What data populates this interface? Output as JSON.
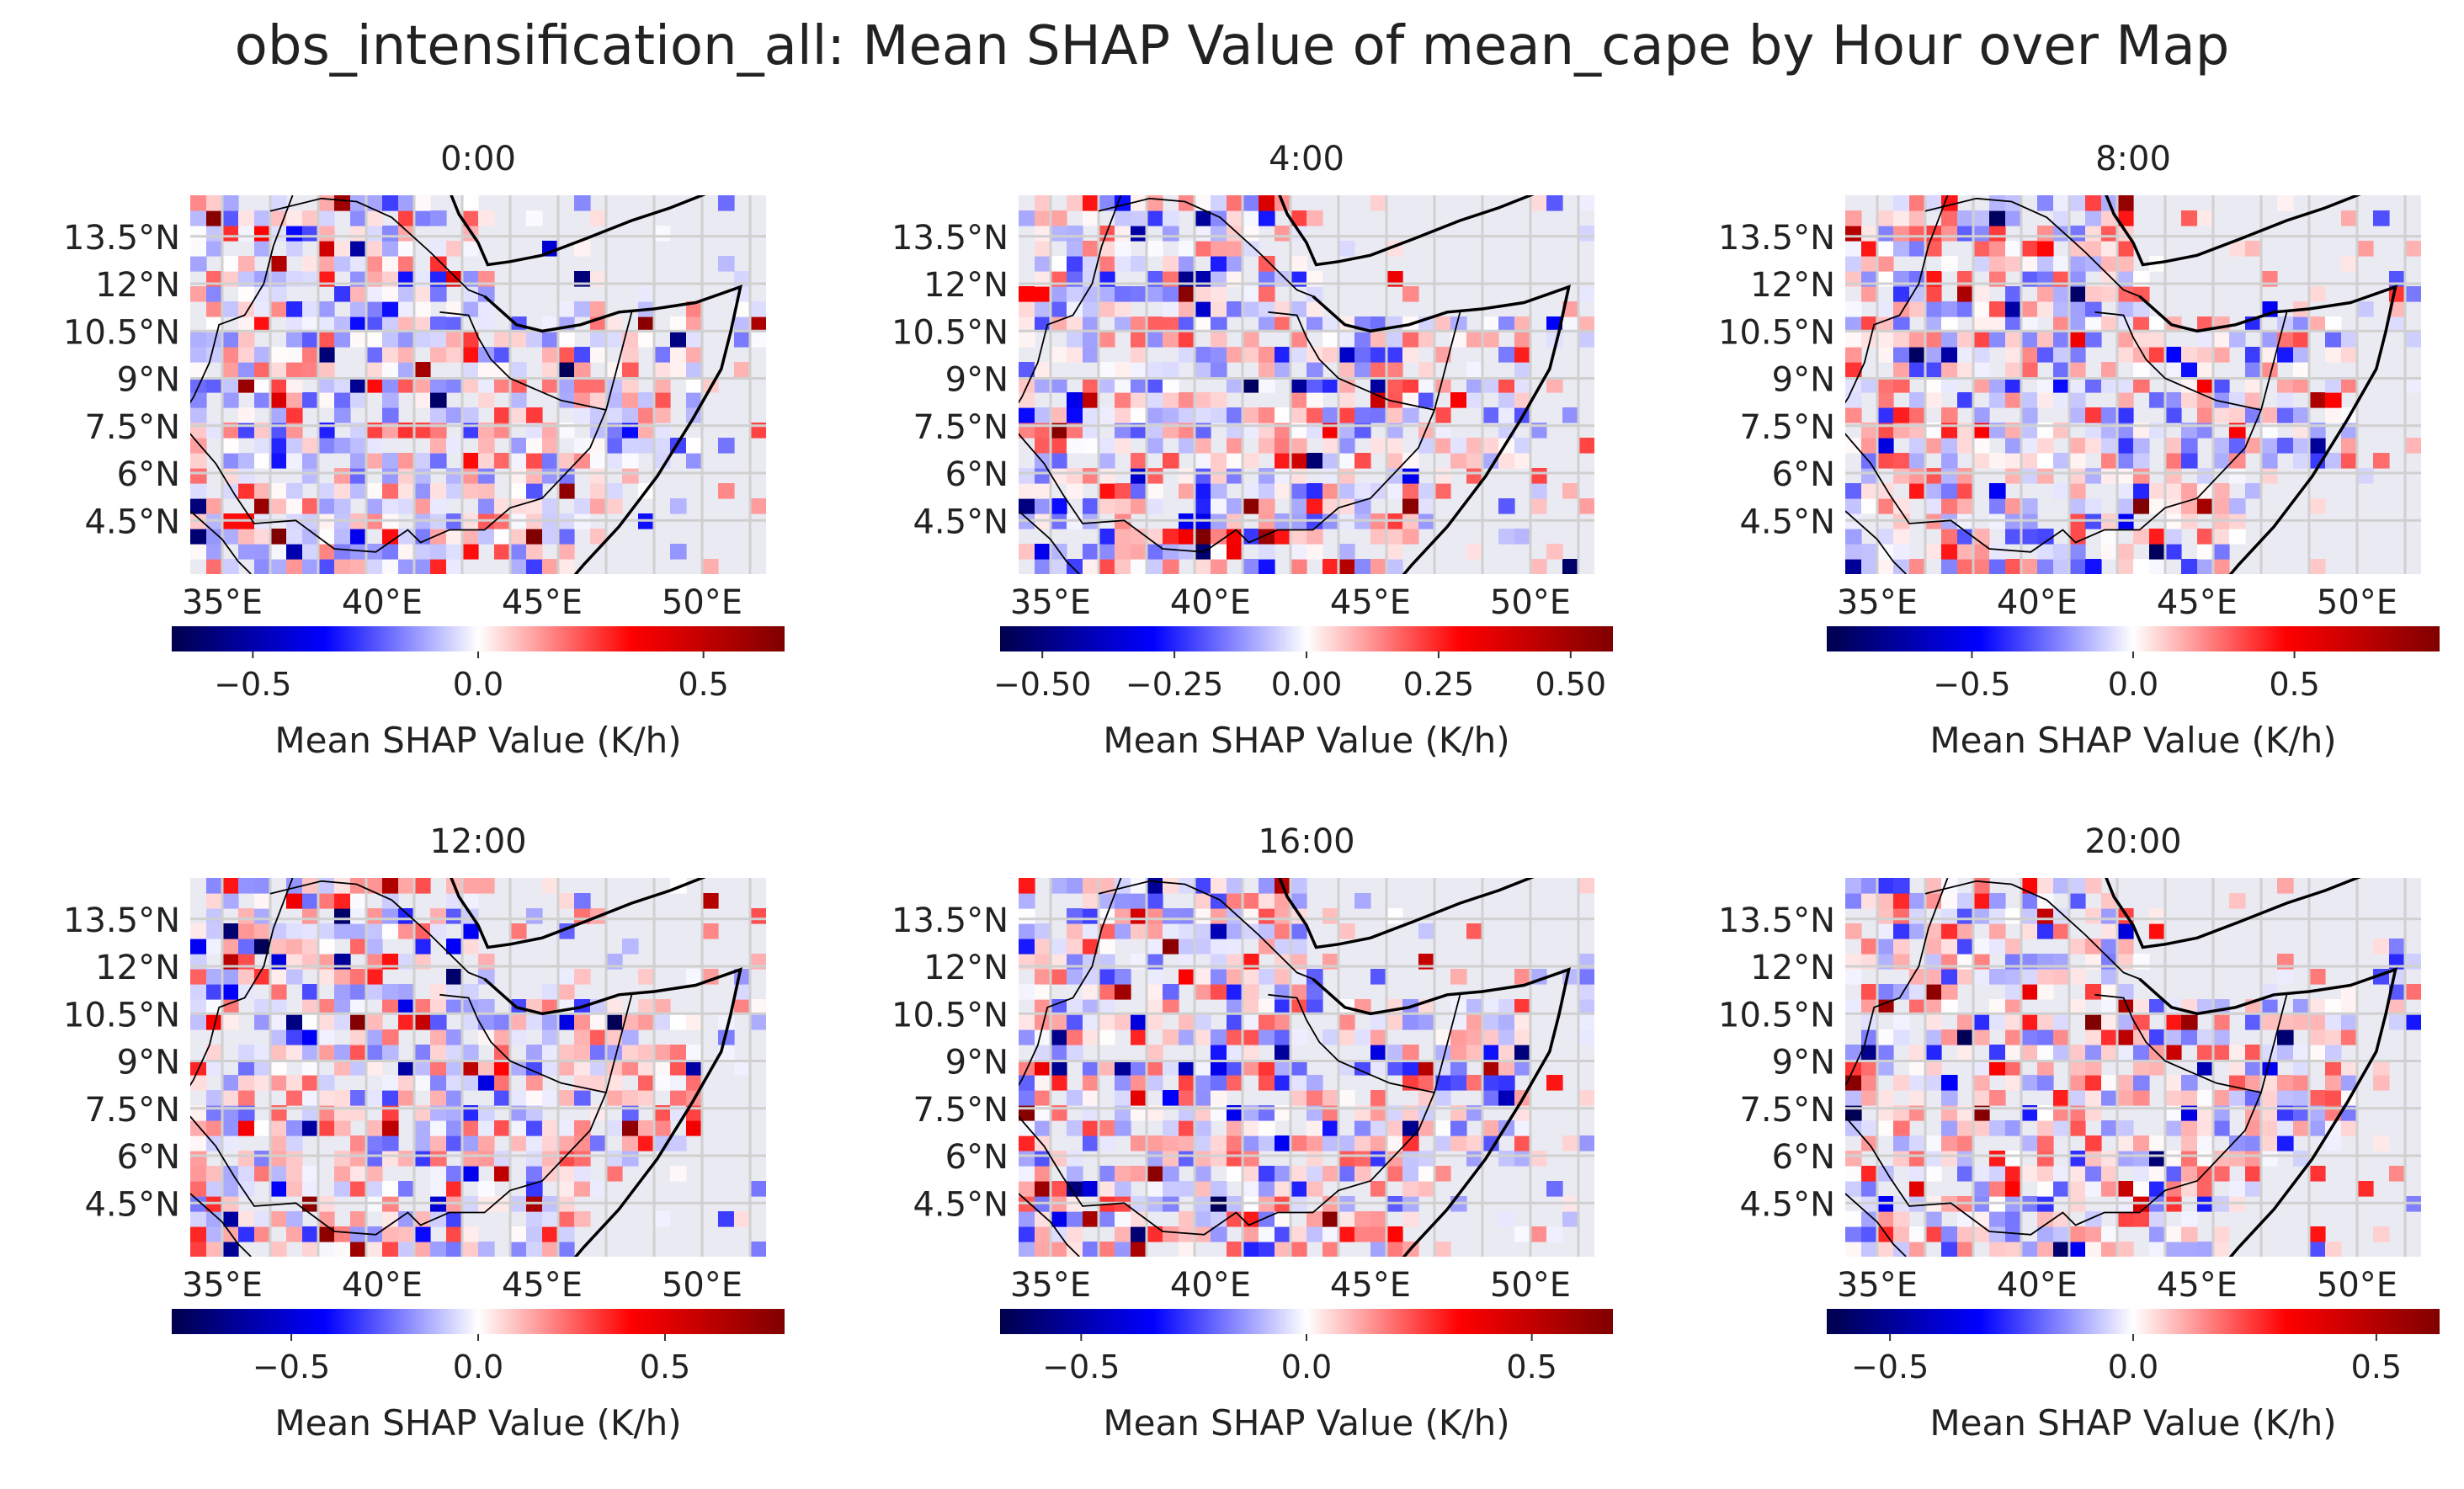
{
  "title": "obs_intensification_all: Mean SHAP Value of mean_cape by Hour over Map",
  "colormap": "seismic",
  "colormap_stops": [
    "#00004c",
    "#0000ff",
    "#ffffff",
    "#ff0000",
    "#7f0000"
  ],
  "background_color": "#eaeaf2",
  "grid_color": "#d0d0d0",
  "chart_data": [
    {
      "type": "heatmap",
      "title": "0:00",
      "map_extent_lon": [
        34,
        52
      ],
      "map_extent_lat": [
        2.8,
        14.8
      ],
      "lat_ticks": [
        "13.5°N",
        "12°N",
        "10.5°N",
        "9°N",
        "7.5°N",
        "6°N",
        "4.5°N"
      ],
      "lon_ticks": [
        "35°E",
        "40°E",
        "45°E",
        "50°E"
      ],
      "colorbar": {
        "range": [
          -0.68,
          0.68
        ],
        "ticks": [
          -0.5,
          0.0,
          0.5
        ],
        "tick_labels": [
          "−0.5",
          "0.0",
          "0.5"
        ],
        "label": "Mean SHAP Value (K/h)"
      },
      "values_note": "approximately 380 grid cells, values mostly within ±0.3",
      "seed": 11
    },
    {
      "type": "heatmap",
      "title": "4:00",
      "map_extent_lon": [
        34,
        52
      ],
      "map_extent_lat": [
        2.8,
        14.8
      ],
      "lat_ticks": [
        "13.5°N",
        "12°N",
        "10.5°N",
        "9°N",
        "7.5°N",
        "6°N",
        "4.5°N"
      ],
      "lon_ticks": [
        "35°E",
        "40°E",
        "45°E",
        "50°E"
      ],
      "colorbar": {
        "range": [
          -0.58,
          0.58
        ],
        "ticks": [
          -0.5,
          -0.25,
          0.0,
          0.25,
          0.5
        ],
        "tick_labels": [
          "−0.50",
          "−0.25",
          "0.00",
          "0.25",
          "0.50"
        ],
        "label": "Mean SHAP Value (K/h)"
      },
      "seed": 23
    },
    {
      "type": "heatmap",
      "title": "8:00",
      "map_extent_lon": [
        34,
        52
      ],
      "map_extent_lat": [
        2.8,
        14.8
      ],
      "lat_ticks": [
        "13.5°N",
        "12°N",
        "10.5°N",
        "9°N",
        "7.5°N",
        "6°N",
        "4.5°N"
      ],
      "lon_ticks": [
        "35°E",
        "40°E",
        "45°E",
        "50°E"
      ],
      "colorbar": {
        "range": [
          -0.95,
          0.95
        ],
        "ticks": [
          -0.5,
          0.0,
          0.5
        ],
        "tick_labels": [
          "−0.5",
          "0.0",
          "0.5"
        ],
        "label": "Mean SHAP Value (K/h)"
      },
      "seed": 37
    },
    {
      "type": "heatmap",
      "title": "12:00",
      "map_extent_lon": [
        34,
        52
      ],
      "map_extent_lat": [
        2.8,
        14.8
      ],
      "lat_ticks": [
        "13.5°N",
        "12°N",
        "10.5°N",
        "9°N",
        "7.5°N",
        "6°N",
        "4.5°N"
      ],
      "lon_ticks": [
        "35°E",
        "40°E",
        "45°E",
        "50°E"
      ],
      "colorbar": {
        "range": [
          -0.82,
          0.82
        ],
        "ticks": [
          -0.5,
          0.0,
          0.5
        ],
        "tick_labels": [
          "−0.5",
          "0.0",
          "0.5"
        ],
        "label": "Mean SHAP Value (K/h)"
      },
      "seed": 53
    },
    {
      "type": "heatmap",
      "title": "16:00",
      "map_extent_lon": [
        34,
        52
      ],
      "map_extent_lat": [
        2.8,
        14.8
      ],
      "lat_ticks": [
        "13.5°N",
        "12°N",
        "10.5°N",
        "9°N",
        "7.5°N",
        "6°N",
        "4.5°N"
      ],
      "lon_ticks": [
        "35°E",
        "40°E",
        "45°E",
        "50°E"
      ],
      "colorbar": {
        "range": [
          -0.68,
          0.68
        ],
        "ticks": [
          -0.5,
          0.0,
          0.5
        ],
        "tick_labels": [
          "−0.5",
          "0.0",
          "0.5"
        ],
        "label": "Mean SHAP Value (K/h)"
      },
      "seed": 71
    },
    {
      "type": "heatmap",
      "title": "20:00",
      "map_extent_lon": [
        34,
        52
      ],
      "map_extent_lat": [
        2.8,
        14.8
      ],
      "lat_ticks": [
        "13.5°N",
        "12°N",
        "10.5°N",
        "9°N",
        "7.5°N",
        "6°N",
        "4.5°N"
      ],
      "lon_ticks": [
        "35°E",
        "40°E",
        "45°E",
        "50°E"
      ],
      "colorbar": {
        "range": [
          -0.63,
          0.63
        ],
        "ticks": [
          -0.5,
          0.0,
          0.5
        ],
        "tick_labels": [
          "−0.5",
          "0.0",
          "0.5"
        ],
        "label": "Mean SHAP Value (K/h)"
      },
      "seed": 89
    }
  ]
}
